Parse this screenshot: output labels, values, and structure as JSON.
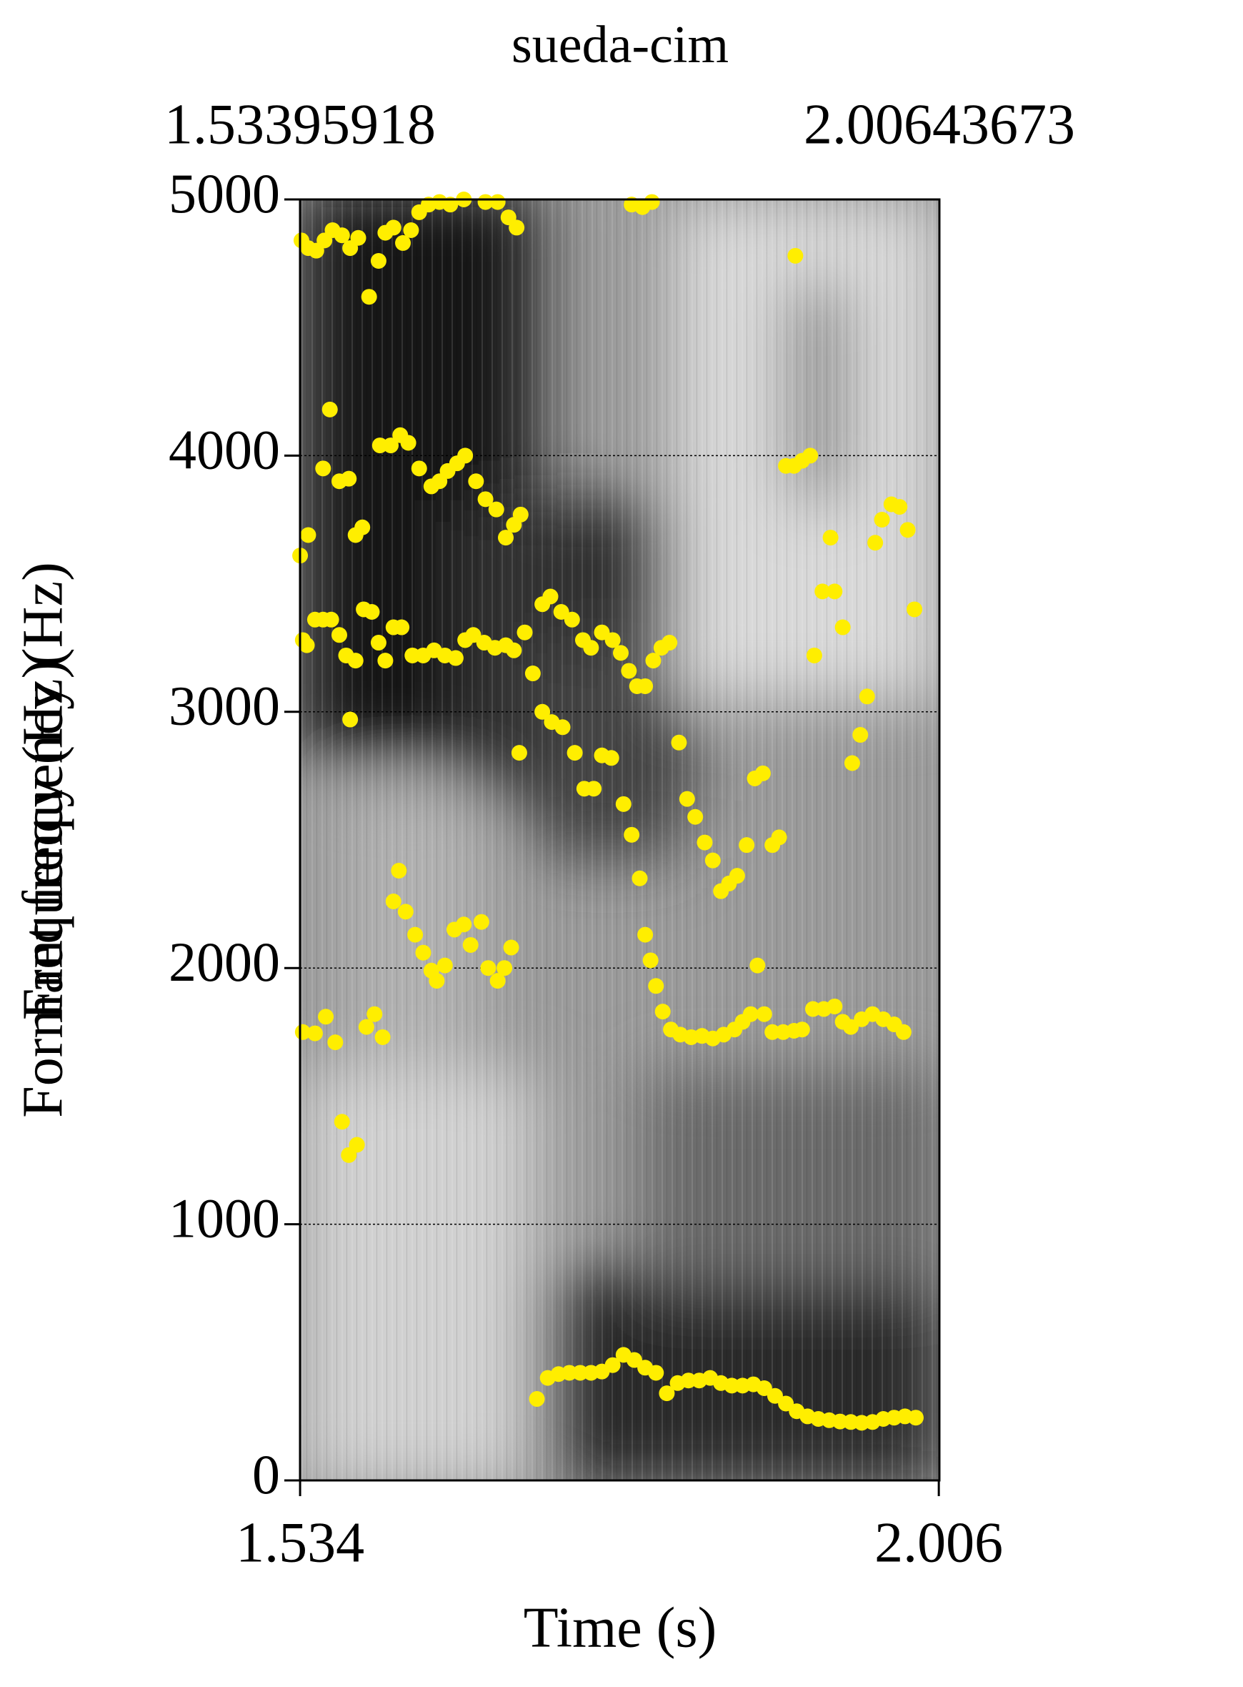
{
  "chart_data": {
    "type": "scatter",
    "title": "sueda-cim",
    "xlabel": "Time (s)",
    "ylabels": [
      "Formant frequency (Hz)",
      "Frequency (Hz)"
    ],
    "xlim": [
      1.53395918,
      2.00643673
    ],
    "xticks": [
      1.534,
      2.006
    ],
    "ylim": [
      0,
      5000
    ],
    "yticks": [
      0,
      1000,
      2000,
      3000,
      4000,
      5000
    ],
    "grid": true,
    "color": "#ffee00",
    "x": [
      1.709,
      1.717,
      1.725,
      1.733,
      1.741,
      1.749,
      1.757,
      1.765,
      1.773,
      1.781,
      1.789,
      1.797,
      1.805,
      1.813,
      1.821,
      1.829,
      1.837,
      1.845,
      1.853,
      1.861,
      1.869,
      1.877,
      1.885,
      1.893,
      1.901,
      1.909,
      1.917,
      1.925,
      1.933,
      1.941,
      1.949,
      1.957,
      1.965,
      1.973,
      1.981,
      1.989,
      1.536,
      1.545,
      1.553,
      1.56,
      1.565,
      1.57,
      1.576,
      1.583,
      1.589,
      1.595,
      1.603,
      1.607,
      1.612,
      1.619,
      1.625,
      1.631,
      1.635,
      1.641,
      1.648,
      1.655,
      1.66,
      1.668,
      1.673,
      1.68,
      1.685,
      1.69,
      1.696,
      1.713,
      1.72,
      1.728,
      1.737,
      1.744,
      1.751,
      1.757,
      1.764,
      1.773,
      1.779,
      1.785,
      1.789,
      1.793,
      1.797,
      1.802,
      1.808,
      1.815,
      1.823,
      1.831,
      1.839,
      1.847,
      1.855,
      1.861,
      1.867,
      1.872,
      1.877,
      1.883,
      1.891,
      1.899,
      1.905,
      1.913,
      1.921,
      1.929,
      1.935,
      1.941,
      1.949,
      1.957,
      1.965,
      1.973,
      1.98,
      1.536,
      1.539,
      1.545,
      1.551,
      1.557,
      1.563,
      1.568,
      1.575,
      1.581,
      1.587,
      1.592,
      1.597,
      1.603,
      1.609,
      1.617,
      1.625,
      1.633,
      1.641,
      1.649,
      1.656,
      1.662,
      1.67,
      1.678,
      1.686,
      1.692,
      1.7,
      1.706,
      1.713,
      1.719,
      1.727,
      1.735,
      1.743,
      1.749,
      1.757,
      1.765,
      1.771,
      1.777,
      1.783,
      1.789,
      1.795,
      1.801,
      1.807,
      1.814,
      1.82,
      1.826,
      1.833,
      1.839,
      1.845,
      1.851,
      1.857,
      1.864,
      1.87,
      1.876,
      1.883,
      1.888,
      1.914,
      1.92,
      1.926,
      1.929,
      1.935,
      1.942,
      1.948,
      1.953,
      1.959,
      1.964,
      1.971,
      1.977,
      1.983,
      1.988,
      1.534,
      1.54,
      1.551,
      1.556,
      1.563,
      1.57,
      1.571,
      1.575,
      1.58,
      1.593,
      1.601,
      1.608,
      1.614,
      1.622,
      1.631,
      1.637,
      1.643,
      1.65,
      1.656,
      1.664,
      1.671,
      1.679,
      1.686,
      1.692,
      1.697,
      1.893,
      1.899,
      1.905,
      1.911,
      1.535,
      1.54,
      1.546,
      1.552,
      1.558,
      1.565,
      1.571,
      1.577,
      1.585,
      1.592,
      1.597,
      1.603,
      1.61,
      1.616,
      1.622,
      1.629,
      1.637,
      1.645,
      1.655,
      1.671,
      1.68,
      1.688,
      1.694,
      1.779,
      1.787,
      1.794,
      1.9
    ],
    "values": [
      318,
      400,
      415,
      420,
      420,
      420,
      425,
      450,
      490,
      470,
      440,
      420,
      340,
      380,
      390,
      390,
      400,
      380,
      370,
      370,
      375,
      360,
      330,
      300,
      270,
      250,
      240,
      235,
      230,
      228,
      225,
      228,
      240,
      245,
      250,
      245,
      1750,
      1745,
      1810,
      1710,
      1400,
      1270,
      1310,
      1770,
      1820,
      1730,
      2260,
      2380,
      2220,
      2130,
      2060,
      1990,
      1950,
      2010,
      2150,
      2170,
      2090,
      2180,
      2000,
      1950,
      2000,
      2080,
      2840,
      3000,
      2960,
      2940,
      2840,
      2700,
      2700,
      2830,
      2820,
      2640,
      2520,
      2350,
      2130,
      2030,
      1930,
      1830,
      1760,
      1740,
      1730,
      1735,
      1725,
      1740,
      1760,
      1790,
      1820,
      2010,
      1820,
      1750,
      1750,
      1755,
      1760,
      1840,
      1840,
      1850,
      1790,
      1770,
      1800,
      1820,
      1800,
      1780,
      1750,
      3280,
      3260,
      3360,
      3360,
      3360,
      3300,
      3220,
      3200,
      3400,
      3390,
      3270,
      3200,
      3330,
      3330,
      3220,
      3220,
      3240,
      3220,
      3210,
      3280,
      3300,
      3270,
      3250,
      3260,
      3240,
      3310,
      3150,
      3420,
      3450,
      3390,
      3360,
      3280,
      3250,
      3310,
      3280,
      3230,
      3160,
      3100,
      3100,
      3200,
      3250,
      3270,
      2880,
      2660,
      2590,
      2490,
      2420,
      2300,
      2330,
      2360,
      2480,
      2740,
      2760,
      2480,
      2510,
      3220,
      3470,
      3680,
      3470,
      3330,
      2800,
      2910,
      3060,
      3660,
      3750,
      3810,
      3800,
      3710,
      3400,
      3610,
      3690,
      3950,
      4180,
      3900,
      3910,
      2970,
      3690,
      3720,
      4040,
      4040,
      4080,
      4050,
      3950,
      3880,
      3900,
      3940,
      3970,
      4000,
      3900,
      3830,
      3790,
      3680,
      3730,
      3770,
      3960,
      3960,
      3980,
      4000,
      4840,
      4810,
      4800,
      4840,
      4880,
      4860,
      4810,
      4850,
      4620,
      4760,
      4870,
      4890,
      4830,
      4880,
      4950,
      4980,
      4990,
      4980,
      5000,
      4990,
      4990,
      4930,
      4890,
      4980,
      4970,
      4990,
      4780
    ]
  }
}
